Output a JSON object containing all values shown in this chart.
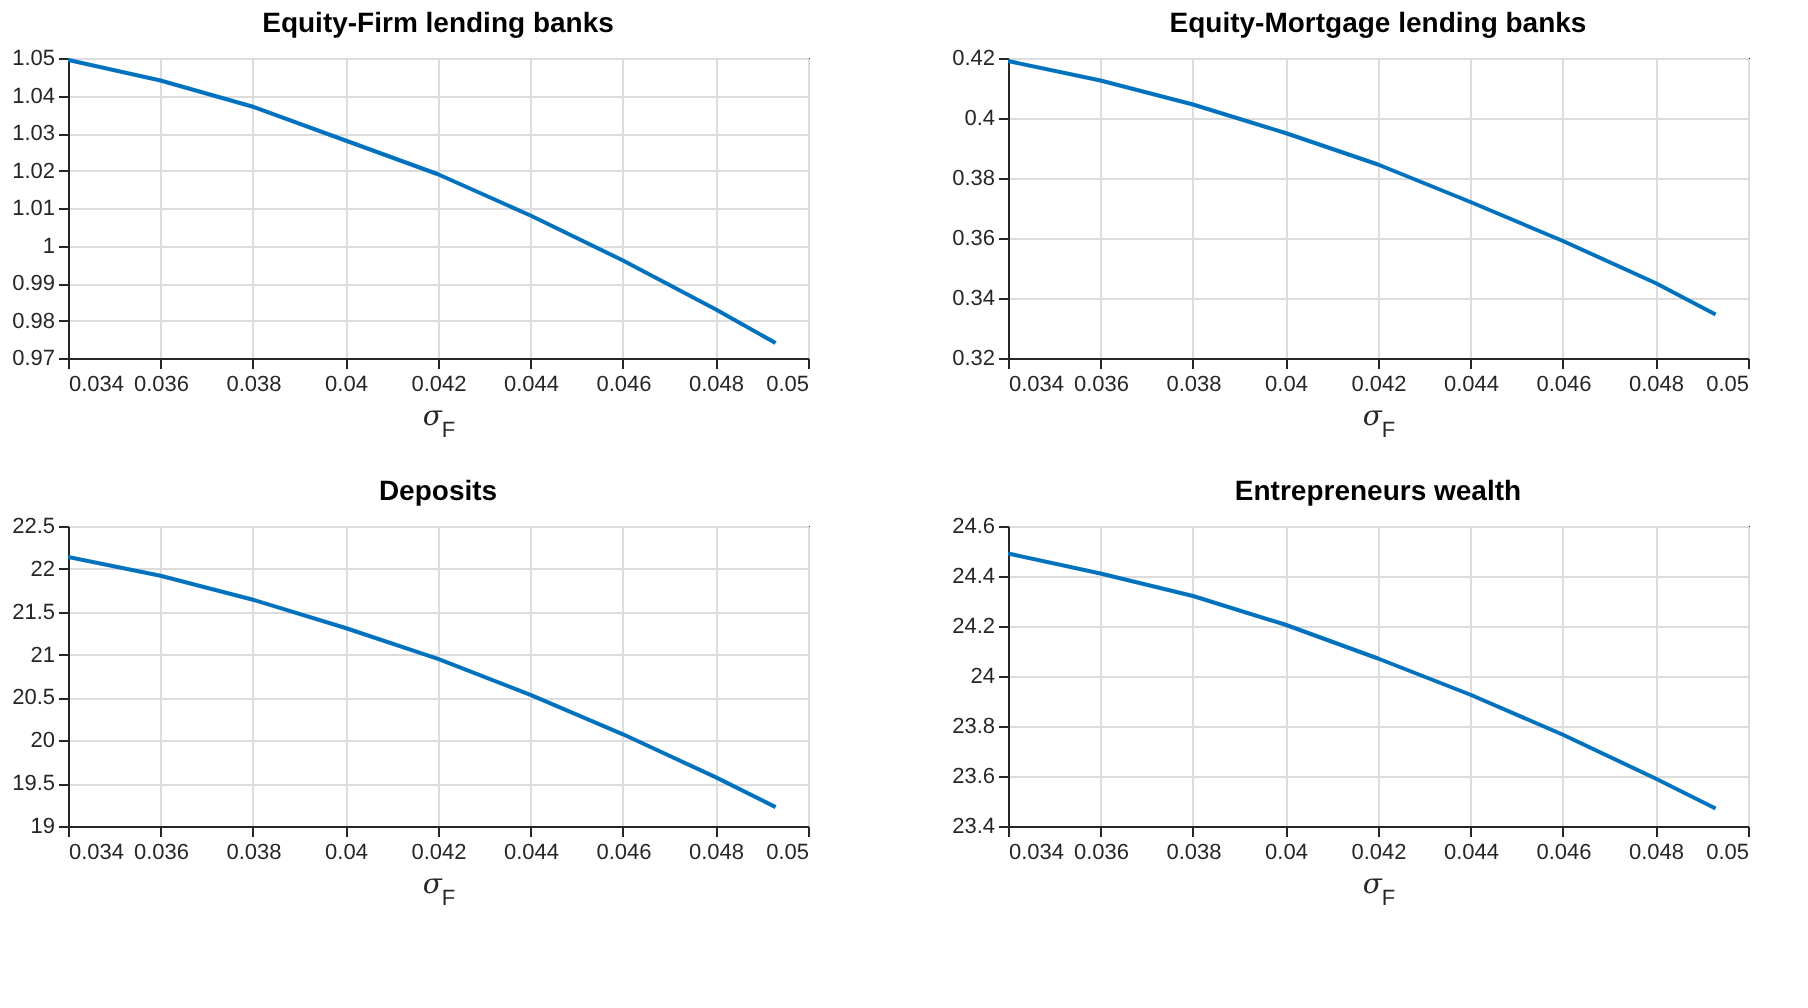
{
  "chart_data": [
    {
      "type": "line",
      "title": "Equity-Firm lending banks",
      "xlabel": "σ$_{F}$",
      "x": [
        0.034,
        0.036,
        0.038,
        0.04,
        0.042,
        0.044,
        0.046,
        0.048,
        0.0493
      ],
      "series": [
        {
          "color": "#0072bd",
          "values": [
            1.0495,
            1.044,
            1.037,
            1.028,
            1.019,
            1.008,
            0.996,
            0.983,
            0.974
          ]
        }
      ],
      "xlim": [
        0.034,
        0.05
      ],
      "xticks": [
        0.034,
        0.036,
        0.038,
        0.04,
        0.042,
        0.044,
        0.046,
        0.048,
        0.05
      ],
      "ylim": [
        0.97,
        1.05
      ],
      "yticks": [
        0.97,
        0.98,
        0.99,
        1,
        1.01,
        1.02,
        1.03,
        1.04,
        1.05
      ],
      "grid": true
    },
    {
      "type": "line",
      "title": "Equity-Mortgage lending banks",
      "xlabel": "σ$_{F}$",
      "x": [
        0.034,
        0.036,
        0.038,
        0.04,
        0.042,
        0.044,
        0.046,
        0.048,
        0.0493
      ],
      "series": [
        {
          "color": "#0072bd",
          "values": [
            0.419,
            0.4125,
            0.4045,
            0.395,
            0.3845,
            0.372,
            0.359,
            0.345,
            0.3345
          ]
        }
      ],
      "xlim": [
        0.034,
        0.05
      ],
      "xticks": [
        0.034,
        0.036,
        0.038,
        0.04,
        0.042,
        0.044,
        0.046,
        0.048,
        0.05
      ],
      "ylim": [
        0.32,
        0.42
      ],
      "yticks": [
        0.32,
        0.34,
        0.36,
        0.38,
        0.4,
        0.42
      ],
      "grid": true
    },
    {
      "type": "line",
      "title": "Deposits",
      "xlabel": "σ$_{F}$",
      "x": [
        0.034,
        0.036,
        0.038,
        0.04,
        0.042,
        0.044,
        0.046,
        0.048,
        0.0493
      ],
      "series": [
        {
          "color": "#0072bd",
          "values": [
            22.14,
            21.92,
            21.64,
            21.31,
            20.95,
            20.53,
            20.07,
            19.57,
            19.22
          ]
        }
      ],
      "xlim": [
        0.034,
        0.05
      ],
      "xticks": [
        0.034,
        0.036,
        0.038,
        0.04,
        0.042,
        0.044,
        0.046,
        0.048,
        0.05
      ],
      "ylim": [
        19,
        22.5
      ],
      "yticks": [
        19,
        19.5,
        20,
        20.5,
        21,
        21.5,
        22,
        22.5
      ],
      "grid": true
    },
    {
      "type": "line",
      "title": "Entrepreneurs wealth",
      "xlabel": "σ$_{F}$",
      "x": [
        0.034,
        0.036,
        0.038,
        0.04,
        0.042,
        0.044,
        0.046,
        0.048,
        0.0493
      ],
      "series": [
        {
          "color": "#0072bd",
          "values": [
            24.49,
            24.41,
            24.32,
            24.205,
            24.07,
            23.925,
            23.765,
            23.59,
            23.47
          ]
        }
      ],
      "xlim": [
        0.034,
        0.05
      ],
      "xticks": [
        0.034,
        0.036,
        0.038,
        0.04,
        0.042,
        0.044,
        0.046,
        0.048,
        0.05
      ],
      "ylim": [
        23.4,
        24.6
      ],
      "yticks": [
        23.4,
        23.6,
        23.8,
        24,
        24.2,
        24.4,
        24.6
      ],
      "grid": true
    }
  ]
}
